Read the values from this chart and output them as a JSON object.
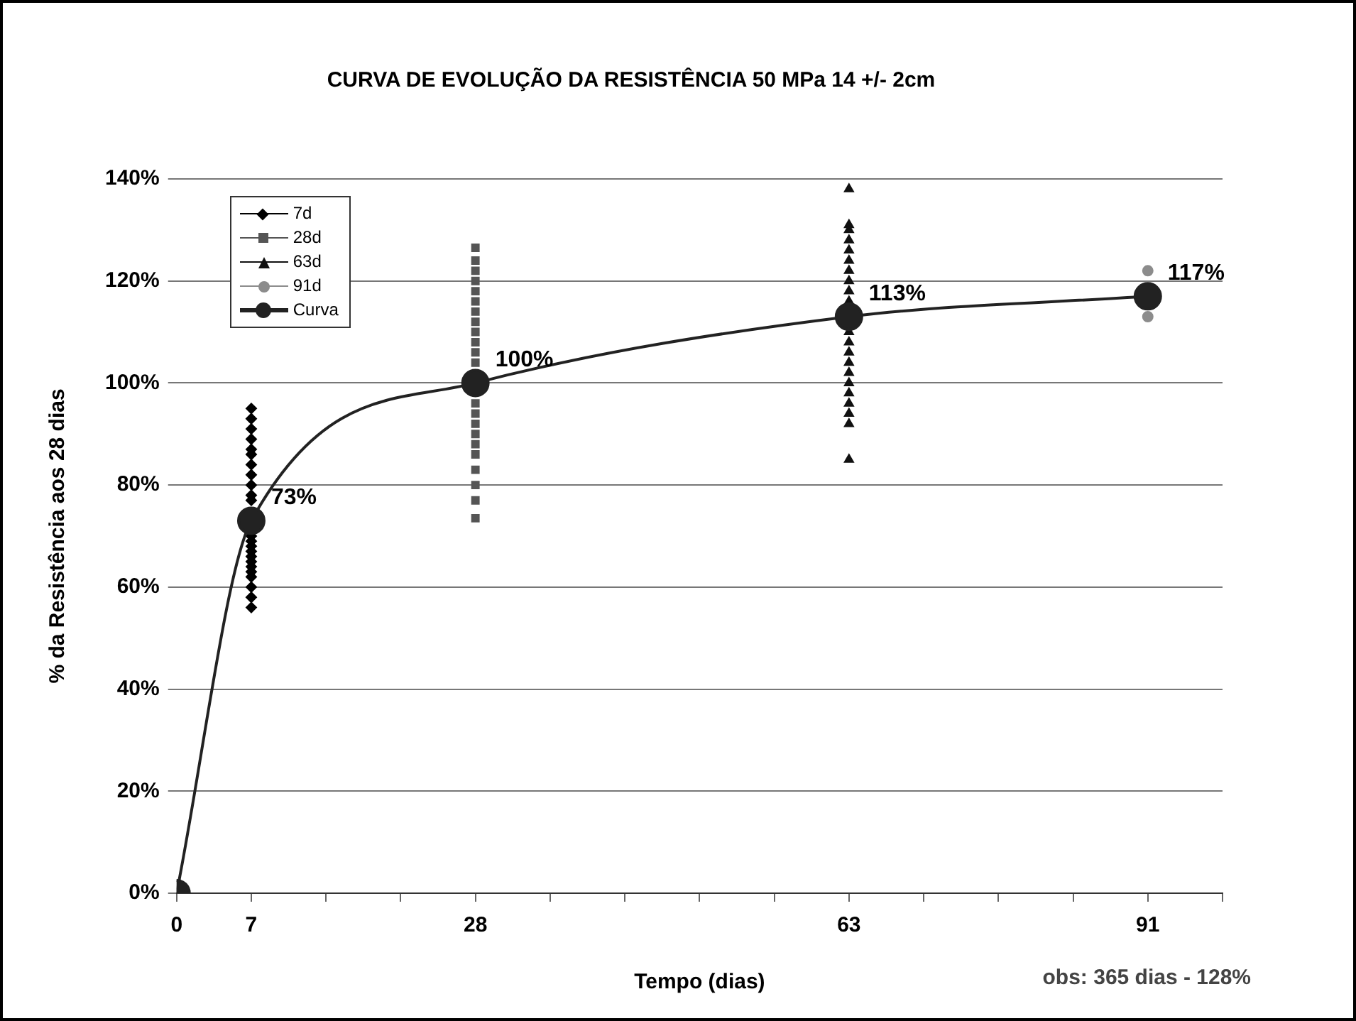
{
  "chart_data": {
    "type": "scatter",
    "title": "CURVA DE EVOLUÇÃO DA RESISTÊNCIA 50 MPa 14 +/- 2cm",
    "xlabel": "Tempo (dias)",
    "ylabel": "% da Resistência aos 28 dias",
    "xlim": [
      0,
      98
    ],
    "xticks": [
      0,
      7,
      {
        "value": 14,
        "label": null
      },
      {
        "value": 21,
        "label": null
      },
      28,
      {
        "value": 35,
        "label": null
      },
      {
        "value": 42,
        "label": null
      },
      {
        "value": 49,
        "label": null
      },
      {
        "value": 56,
        "label": null
      },
      63,
      {
        "value": 70,
        "label": null
      },
      {
        "value": 77,
        "label": null
      },
      {
        "value": 84,
        "label": null
      },
      91,
      {
        "value": 98,
        "label": null
      }
    ],
    "ylim": [
      0,
      140
    ],
    "yticks": [
      {
        "value": 0,
        "label": "0%"
      },
      {
        "value": 20,
        "label": "20%"
      },
      {
        "value": 40,
        "label": "40%"
      },
      {
        "value": 60,
        "label": "60%"
      },
      {
        "value": 80,
        "label": "80%"
      },
      {
        "value": 100,
        "label": "100%"
      },
      {
        "value": 120,
        "label": "120%"
      },
      {
        "value": 140,
        "label": "140%"
      }
    ],
    "grid": "y",
    "legend": "top left",
    "annotations": [
      "obs: 365 dias  - 128%"
    ],
    "series": [
      {
        "name": "7d",
        "type": "scatter",
        "marker": "diamond",
        "color": "#000000",
        "x": [
          7,
          7,
          7,
          7,
          7,
          7,
          7,
          7,
          7,
          7,
          7,
          7,
          7,
          7,
          7,
          7,
          7,
          7,
          7,
          7,
          7,
          7,
          7
        ],
        "values": [
          56,
          58,
          60,
          62,
          63,
          64,
          65,
          66,
          67,
          68,
          69,
          70,
          77,
          78,
          80,
          82,
          84,
          86,
          87,
          89,
          91,
          93,
          95
        ]
      },
      {
        "name": "28d",
        "type": "scatter",
        "marker": "square",
        "color": "#555555",
        "x": [
          28,
          28,
          28,
          28,
          28,
          28,
          28,
          28,
          28,
          28,
          28,
          28,
          28,
          28,
          28,
          28,
          28,
          28,
          28,
          28,
          28,
          28
        ],
        "values": [
          73.5,
          77,
          80,
          83,
          86,
          88,
          90,
          92,
          94,
          96,
          104,
          106,
          108,
          110,
          112,
          114,
          116,
          118,
          120,
          122,
          124,
          126.5
        ]
      },
      {
        "name": "63d",
        "type": "scatter",
        "marker": "triangle",
        "color": "#111111",
        "x": [
          63,
          63,
          63,
          63,
          63,
          63,
          63,
          63,
          63,
          63,
          63,
          63,
          63,
          63,
          63,
          63,
          63,
          63,
          63,
          63,
          63
        ],
        "values": [
          85,
          92,
          94,
          96,
          98,
          100,
          102,
          104,
          106,
          108,
          110,
          116,
          118,
          120,
          122,
          124,
          126,
          128,
          130,
          131,
          138
        ]
      },
      {
        "name": "91d",
        "type": "scatter",
        "marker": "circle",
        "color": "#8c8c8c",
        "x": [
          91,
          91
        ],
        "values": [
          113,
          122
        ]
      },
      {
        "name": "Curva",
        "type": "line",
        "marker": "circle",
        "color": "#222222",
        "x": [
          0,
          7,
          28,
          63,
          91
        ],
        "values": [
          0,
          73,
          100,
          113,
          117
        ],
        "value_labels": [
          null,
          "73%",
          "100%",
          "113%",
          "117%"
        ]
      }
    ]
  }
}
